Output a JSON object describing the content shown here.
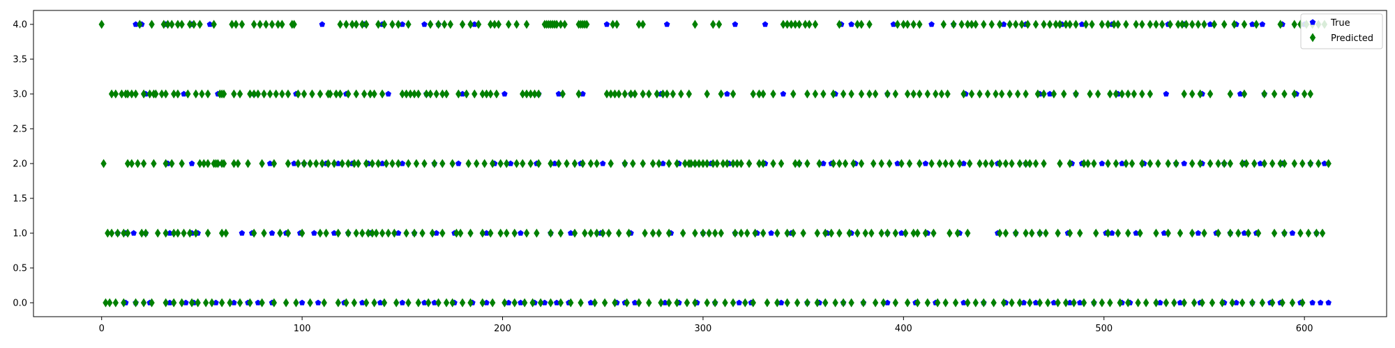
{
  "chart_data": {
    "type": "scatter",
    "title": "",
    "xlabel": "",
    "ylabel": "",
    "xlim": [
      -34,
      641
    ],
    "ylim": [
      -0.2,
      4.2
    ],
    "xticks": [
      0,
      100,
      200,
      300,
      400,
      500,
      600
    ],
    "yticks": [
      0.0,
      0.5,
      1.0,
      1.5,
      2.0,
      2.5,
      3.0,
      3.5,
      4.0
    ],
    "xtick_labels": [
      "0",
      "100",
      "200",
      "300",
      "400",
      "500",
      "600"
    ],
    "ytick_labels": [
      "0.0",
      "0.5",
      "1.0",
      "1.5",
      "2.0",
      "2.5",
      "3.0",
      "3.5",
      "4.0"
    ],
    "grid": false,
    "legend_position": "top-right",
    "series": [
      {
        "name": "True",
        "marker": "pentagon",
        "color": "#0000ff",
        "points": {
          "4": [
            17,
            20,
            32,
            45,
            54,
            110,
            131,
            140,
            150,
            161,
            168,
            186,
            252,
            282,
            316,
            331,
            369,
            374,
            395,
            414,
            425,
            450,
            461,
            479,
            489,
            504,
            532,
            540,
            553,
            566,
            574,
            579,
            589,
            600
          ],
          "3": [
            22,
            41,
            58,
            76,
            97,
            122,
            143,
            162,
            180,
            201,
            218,
            228,
            240,
            264,
            279,
            312,
            340,
            366,
            392,
            431,
            468,
            473,
            486,
            507,
            531,
            549,
            568,
            580,
            596
          ],
          "2": [
            33,
            45,
            58,
            84,
            96,
            101,
            112,
            118,
            125,
            133,
            140,
            150,
            166,
            178,
            196,
            204,
            217,
            226,
            239,
            250,
            261,
            280,
            288,
            296,
            304,
            313,
            331,
            348,
            360,
            364,
            376,
            397,
            411,
            430,
            447,
            461,
            484,
            489,
            499,
            509,
            520,
            536,
            540,
            549,
            560,
            570,
            578,
            589,
            603,
            610
          ],
          "1": [
            8,
            12,
            16,
            22,
            34,
            45,
            48,
            70,
            75,
            85,
            92,
            99,
            106,
            116,
            123,
            134,
            148,
            156,
            167,
            176,
            192,
            209,
            224,
            234,
            249,
            264,
            284,
            300,
            316,
            327,
            334,
            344,
            362,
            374,
            392,
            399,
            412,
            428,
            447,
            456,
            468,
            482,
            501,
            504,
            516,
            530,
            547,
            556,
            563,
            570,
            576,
            590,
            594,
            606
          ],
          "0": [
            12,
            17,
            24,
            34,
            42,
            46,
            57,
            66,
            73,
            78,
            85,
            100,
            108,
            121,
            130,
            139,
            150,
            161,
            166,
            176,
            185,
            192,
            203,
            209,
            216,
            221,
            227,
            233,
            244,
            257,
            261,
            266,
            281,
            288,
            297,
            306,
            318,
            324,
            339,
            352,
            358,
            370,
            380,
            392,
            406,
            416,
            430,
            440,
            451,
            460,
            466,
            475,
            483,
            488,
            495,
            509,
            513,
            528,
            538,
            548,
            560,
            566,
            574,
            583,
            588,
            598,
            604,
            608,
            612
          ]
        }
      },
      {
        "name": "Predicted",
        "marker": "thin_diamond",
        "color": "#008000",
        "points": {
          "4": [
            0,
            19,
            25,
            31,
            33,
            35,
            38,
            40,
            44,
            46,
            49,
            56,
            65,
            67,
            70,
            76,
            79,
            82,
            85,
            88,
            90,
            95,
            96,
            119,
            122,
            125,
            127,
            130,
            132,
            138,
            141,
            145,
            148,
            153,
            164,
            168,
            171,
            174,
            180,
            184,
            188,
            194,
            196,
            198,
            203,
            207,
            212,
            221,
            222,
            223,
            224,
            225,
            226,
            227,
            229,
            231,
            238,
            239,
            240,
            241,
            242,
            255,
            257,
            268,
            270,
            296,
            305,
            308,
            340,
            342,
            344,
            346,
            348,
            351,
            353,
            356,
            368,
            377,
            379,
            383,
            397,
            400,
            402,
            405,
            408,
            420,
            425,
            429,
            432,
            434,
            436,
            440,
            444,
            448,
            453,
            456,
            459,
            462,
            466,
            470,
            473,
            476,
            478,
            481,
            483,
            486,
            491,
            494,
            499,
            502,
            505,
            507,
            511,
            516,
            519,
            523,
            526,
            529,
            533,
            537,
            539,
            541,
            544,
            547,
            550,
            555,
            560,
            565,
            570,
            576,
            588,
            595,
            598,
            601,
            604,
            607,
            610
          ],
          "3": [
            5,
            7,
            10,
            12,
            13,
            15,
            17,
            21,
            24,
            26,
            27,
            30,
            32,
            36,
            38,
            43,
            47,
            50,
            53,
            59,
            60,
            61,
            66,
            69,
            74,
            76,
            78,
            81,
            84,
            87,
            90,
            93,
            98,
            101,
            105,
            109,
            113,
            114,
            117,
            119,
            123,
            127,
            131,
            134,
            136,
            140,
            150,
            152,
            154,
            156,
            158,
            162,
            164,
            167,
            170,
            172,
            178,
            182,
            186,
            190,
            192,
            194,
            197,
            210,
            212,
            214,
            216,
            218,
            230,
            238,
            252,
            254,
            256,
            258,
            261,
            264,
            266,
            270,
            273,
            277,
            280,
            282,
            285,
            289,
            293,
            302,
            309,
            315,
            325,
            328,
            330,
            335,
            345,
            352,
            356,
            360,
            365,
            370,
            374,
            379,
            383,
            386,
            392,
            396,
            402,
            405,
            408,
            412,
            416,
            419,
            422,
            430,
            434,
            438,
            442,
            446,
            449,
            453,
            457,
            461,
            467,
            470,
            475,
            480,
            486,
            493,
            497,
            503,
            506,
            509,
            512,
            515,
            519,
            523,
            540,
            544,
            548,
            553,
            563,
            570,
            580,
            585,
            590,
            595,
            600,
            603
          ],
          "2": [
            1,
            13,
            15,
            18,
            21,
            26,
            32,
            35,
            40,
            49,
            51,
            53,
            56,
            57,
            58,
            60,
            61,
            66,
            68,
            73,
            80,
            86,
            93,
            98,
            101,
            104,
            107,
            110,
            113,
            116,
            120,
            123,
            126,
            128,
            132,
            135,
            138,
            142,
            145,
            148,
            153,
            157,
            161,
            166,
            170,
            175,
            183,
            187,
            191,
            195,
            199,
            202,
            207,
            210,
            214,
            218,
            224,
            228,
            232,
            236,
            240,
            244,
            247,
            254,
            261,
            265,
            270,
            275,
            278,
            283,
            287,
            291,
            293,
            294,
            296,
            298,
            300,
            302,
            305,
            307,
            310,
            312,
            315,
            317,
            319,
            323,
            328,
            330,
            335,
            339,
            346,
            348,
            352,
            358,
            365,
            368,
            371,
            375,
            379,
            385,
            389,
            393,
            399,
            403,
            408,
            414,
            418,
            421,
            424,
            428,
            433,
            438,
            441,
            444,
            448,
            451,
            454,
            458,
            461,
            463,
            466,
            470,
            478,
            483,
            490,
            492,
            495,
            502,
            506,
            511,
            514,
            519,
            523,
            527,
            532,
            536,
            544,
            548,
            553,
            557,
            560,
            563,
            569,
            571,
            575,
            580,
            584,
            588,
            590,
            595,
            599,
            603,
            607,
            612
          ],
          "1": [
            3,
            5,
            8,
            11,
            13,
            20,
            22,
            28,
            32,
            36,
            38,
            41,
            44,
            47,
            53,
            60,
            62,
            76,
            81,
            89,
            93,
            100,
            109,
            112,
            118,
            123,
            127,
            130,
            133,
            135,
            137,
            140,
            143,
            146,
            152,
            156,
            160,
            165,
            170,
            177,
            179,
            184,
            190,
            194,
            199,
            202,
            206,
            212,
            217,
            224,
            229,
            236,
            241,
            244,
            247,
            250,
            253,
            258,
            263,
            271,
            275,
            278,
            283,
            290,
            296,
            300,
            303,
            306,
            309,
            316,
            319,
            322,
            326,
            330,
            337,
            342,
            345,
            350,
            357,
            361,
            364,
            368,
            373,
            377,
            381,
            384,
            389,
            392,
            396,
            401,
            405,
            407,
            411,
            415,
            423,
            427,
            432,
            448,
            451,
            456,
            461,
            464,
            468,
            471,
            477,
            483,
            488,
            496,
            502,
            507,
            512,
            518,
            526,
            532,
            538,
            544,
            550,
            557,
            563,
            567,
            572,
            577,
            585,
            590,
            598,
            602,
            606,
            609
          ],
          "0": [
            2,
            4,
            7,
            11,
            17,
            21,
            25,
            32,
            36,
            40,
            45,
            48,
            52,
            55,
            60,
            64,
            69,
            74,
            80,
            86,
            92,
            97,
            104,
            111,
            118,
            122,
            126,
            132,
            136,
            141,
            147,
            153,
            158,
            163,
            168,
            172,
            175,
            180,
            184,
            190,
            195,
            201,
            206,
            211,
            215,
            219,
            224,
            229,
            234,
            239,
            246,
            251,
            256,
            262,
            268,
            273,
            279,
            283,
            287,
            292,
            296,
            302,
            306,
            311,
            315,
            321,
            325,
            332,
            337,
            342,
            347,
            352,
            357,
            361,
            366,
            370,
            374,
            380,
            386,
            390,
            396,
            402,
            407,
            412,
            417,
            421,
            426,
            432,
            436,
            440,
            445,
            450,
            454,
            458,
            463,
            468,
            472,
            477,
            481,
            485,
            490,
            495,
            499,
            503,
            508,
            512,
            517,
            521,
            526,
            531,
            535,
            540,
            545,
            549,
            554,
            559,
            564,
            569,
            574,
            579,
            584,
            589,
            594,
            599
          ]
        }
      }
    ]
  }
}
